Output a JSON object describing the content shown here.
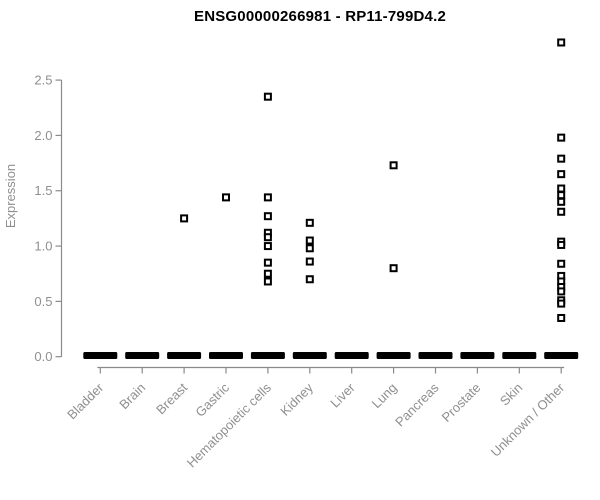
{
  "chart_data": {
    "type": "scatter",
    "title": "ENSG00000266981 - RP11-799D4.2",
    "xlabel": "",
    "ylabel": "Expression",
    "ylim": [
      0,
      2.9
    ],
    "yticks": [
      0.0,
      0.5,
      1.0,
      1.5,
      2.0,
      2.5
    ],
    "ytick_labels": [
      "0.0",
      "0.5",
      "1.0",
      "1.5",
      "2.0",
      "2.5"
    ],
    "grid": false,
    "legend": "none",
    "marker": "open-square",
    "categories": [
      "Bladder",
      "Brain",
      "Breast",
      "Gastric",
      "Hematopoietic cells",
      "Kidney",
      "Liver",
      "Lung",
      "Pancreas",
      "Prostate",
      "Skin",
      "Unknown / Other"
    ],
    "points_by_category": [
      [],
      [],
      [
        1.25
      ],
      [
        1.44
      ],
      [
        2.35,
        1.44,
        1.27,
        1.12,
        1.08,
        1.0,
        0.85,
        0.75,
        0.68
      ],
      [
        1.21,
        1.05,
        0.98,
        0.86,
        0.7
      ],
      [],
      [
        1.73,
        0.8
      ],
      [],
      [],
      [],
      [
        2.84,
        1.98,
        1.79,
        1.65,
        1.52,
        1.46,
        1.4,
        1.31,
        1.04,
        1.01,
        0.84,
        0.73,
        0.68,
        0.63,
        0.59,
        0.51,
        0.48,
        0.35
      ]
    ],
    "zero_cluster": {
      "value": 0.0,
      "present_in_all_categories": true,
      "note": "dense overlapping points at expression 0 form a thick dash in every category"
    },
    "colors": {
      "point": "#000000",
      "axis_line": "#8a8a8a",
      "tick_text": "#8f8f8f",
      "axis_label_text": "#8f8f8f",
      "title_text": "#000000",
      "background": "#ffffff"
    }
  }
}
